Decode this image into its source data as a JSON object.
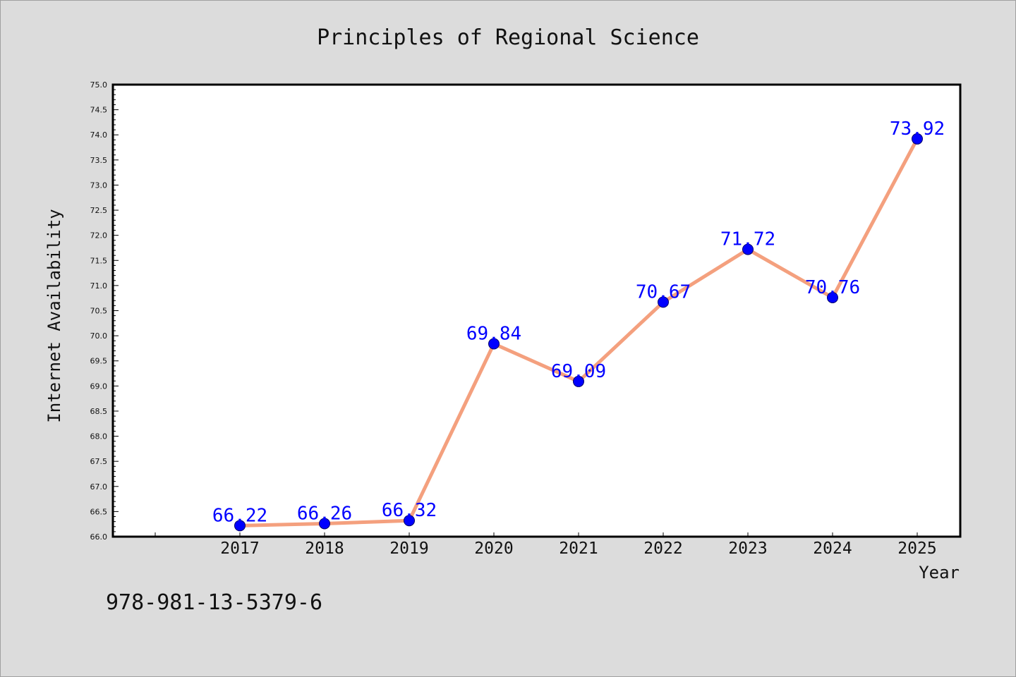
{
  "chart_data": {
    "type": "line",
    "title": "Principles of Regional Science",
    "xlabel": "Year",
    "ylabel": "Internet Availability",
    "x": [
      "2017",
      "2018",
      "2019",
      "2020",
      "2021",
      "2022",
      "2023",
      "2024",
      "2025"
    ],
    "series": [
      {
        "values": [
          66.22,
          66.26,
          66.32,
          69.84,
          69.09,
          70.67,
          71.72,
          70.76,
          73.92
        ],
        "labels": [
          "66.22",
          "66.26",
          "66.32",
          "69.84",
          "69.09",
          "70.67",
          "71.72",
          "70.76",
          "73.92"
        ]
      }
    ],
    "ylim": [
      66.0,
      75.0
    ],
    "yticks": [
      "66.0",
      "66.5",
      "67.0",
      "67.5",
      "68.0",
      "68.5",
      "69.0",
      "69.5",
      "70.0",
      "70.5",
      "71.0",
      "71.5",
      "72.0",
      "72.5",
      "73.0",
      "73.5",
      "74.0",
      "74.5",
      "75.0"
    ],
    "grid": false,
    "colors": {
      "line": "#f4a07e",
      "marker": "#0000ff",
      "label": "#0000ff",
      "plot_background": "#ffffff",
      "figure_background": "#dcdcdc"
    }
  },
  "footer_text": "978-981-13-5379-6"
}
